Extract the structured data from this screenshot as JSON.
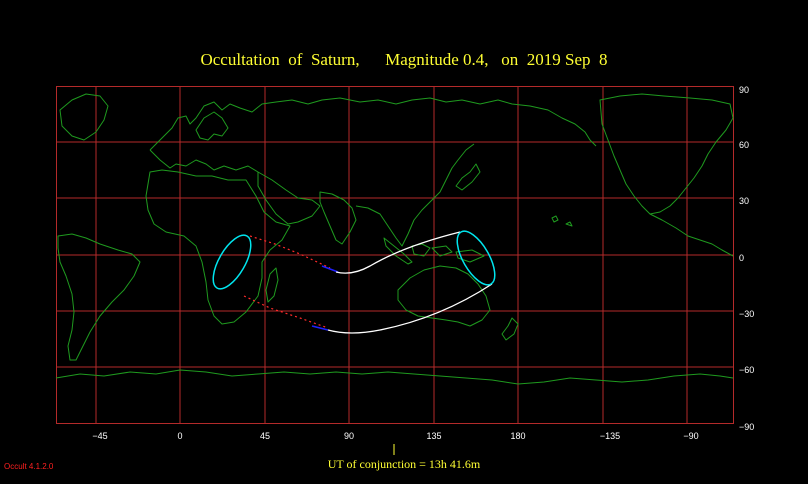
{
  "title": "Occultation  of  Saturn,      Magnitude 0.4,   on  2019 Sep  8",
  "conjunction_label": "UT of conjunction = 13h 41.6m",
  "version_label": "Occult 4.1.2.0",
  "colors": {
    "background": "#000000",
    "grid": "#b42a2a",
    "coastline": "#1f9a1f",
    "title": "#ffff33",
    "path_line": "#ffffff",
    "path_end": "#00e5ee",
    "dotted_track": "#ff2a2a",
    "track_highlight": "#2020ff"
  },
  "axes": {
    "longitude_ticks": [
      "−45",
      "0",
      "45",
      "90",
      "135",
      "180",
      "−135",
      "−90"
    ],
    "latitude_ticks": [
      "90",
      "60",
      "30",
      "0",
      "−30",
      "−60",
      "−90"
    ]
  }
}
